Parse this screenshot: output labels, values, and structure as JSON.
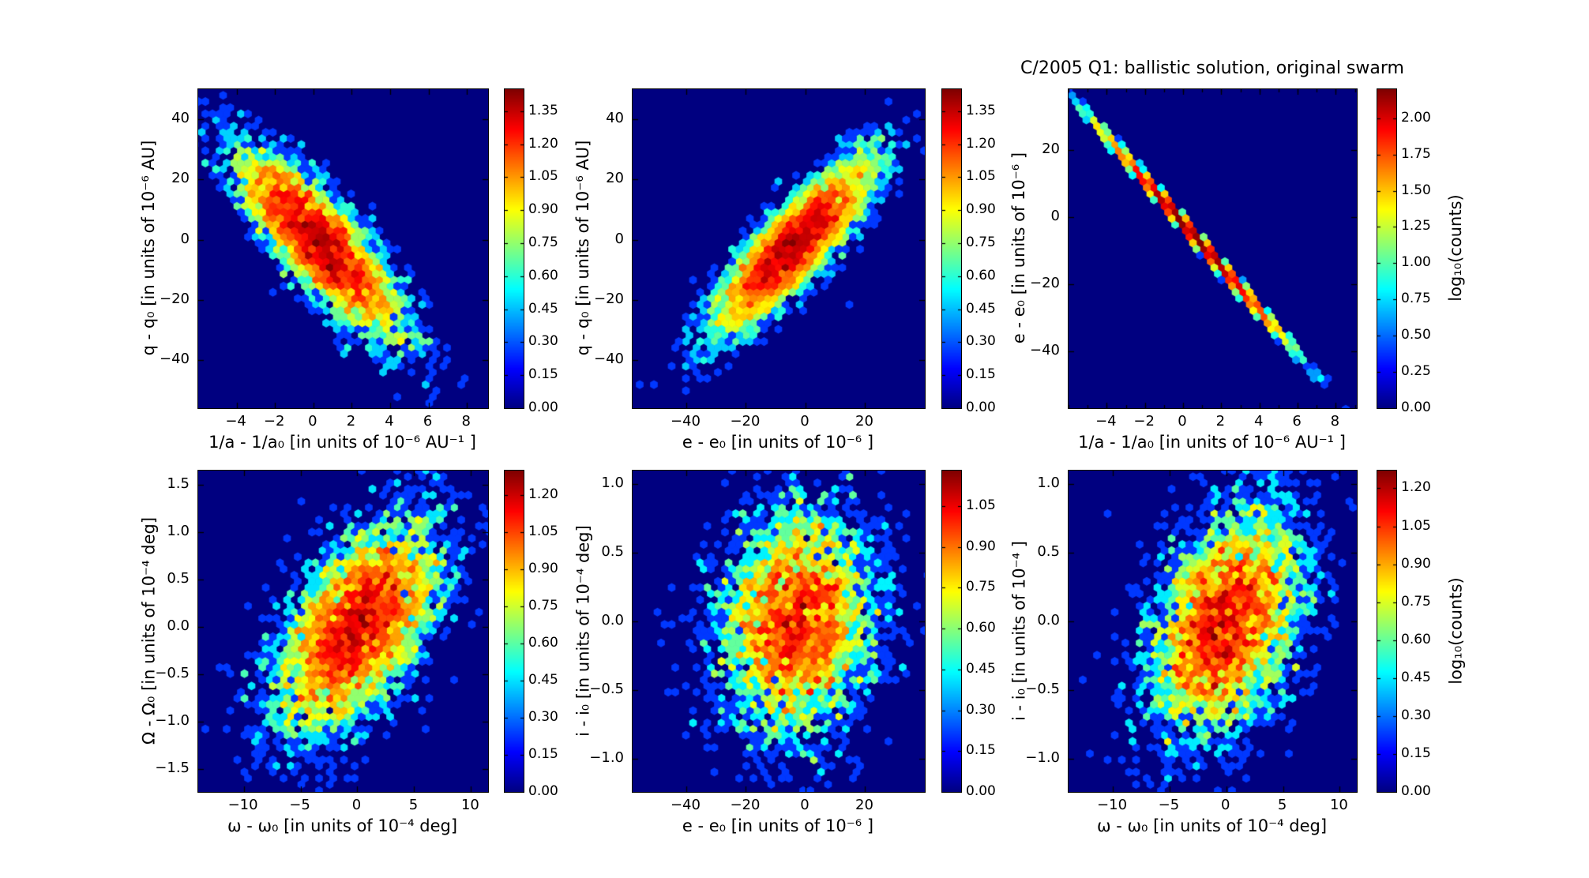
{
  "title": "C/2005 Q1: ballistic solution, original swarm",
  "style": {
    "background": "#ffffff",
    "panel_background": "#000080",
    "colormap": "jet",
    "frame_color": "#000000",
    "text_color": "#000000"
  },
  "chart_data": [
    {
      "id": "dq-vs-dinva",
      "type": "hexbin",
      "xlabel": "1/a - 1/a₀ [in units of 10⁻⁶ AU⁻¹ ]",
      "ylabel": "q - q₀ [in units of 10⁻⁶ AU]",
      "xlim": [
        -6.0,
        9.1
      ],
      "ylim": [
        -56,
        50
      ],
      "xticks": {
        "values": [
          -4,
          -2,
          0,
          2,
          4,
          6,
          8
        ],
        "labels": [
          "−4",
          "−2",
          "0",
          "2",
          "4",
          "6",
          "8"
        ]
      },
      "yticks": {
        "values": [
          40,
          20,
          0,
          -20,
          -40
        ],
        "labels": [
          "40",
          "20",
          "0",
          "−20",
          "−40"
        ]
      },
      "colorbar": {
        "vmax": 1.45,
        "label": "",
        "ticks": {
          "values": [
            1.35,
            1.2,
            1.05,
            0.9,
            0.75,
            0.6,
            0.45,
            0.3,
            0.15,
            0.0
          ],
          "labels": [
            "1.35",
            "1.20",
            "1.05",
            "0.90",
            "0.75",
            "0.60",
            "0.45",
            "0.30",
            "0.15",
            "0.00"
          ]
        }
      },
      "distribution": {
        "shape": "gaussian",
        "mu": [
          0.3,
          -1
        ],
        "sigma": [
          2.1,
          15
        ],
        "rho": -0.82
      },
      "n_points": 5000
    },
    {
      "id": "dq-vs-de",
      "type": "hexbin",
      "xlabel": "e - e₀ [in units of 10⁻⁶ ]",
      "ylabel": "q - q₀ [in units of 10⁻⁶ AU]",
      "xlim": [
        -58,
        40
      ],
      "ylim": [
        -56,
        50
      ],
      "xticks": {
        "values": [
          -40,
          -20,
          0,
          20
        ],
        "labels": [
          "−40",
          "−20",
          "0",
          "20"
        ]
      },
      "yticks": {
        "values": [
          40,
          20,
          0,
          -20,
          -40
        ],
        "labels": [
          "40",
          "20",
          "0",
          "−20",
          "−40"
        ]
      },
      "colorbar": {
        "vmax": 1.45,
        "label": "",
        "ticks": {
          "values": [
            1.35,
            1.2,
            1.05,
            0.9,
            0.75,
            0.6,
            0.45,
            0.3,
            0.15,
            0.0
          ],
          "labels": [
            "1.35",
            "1.20",
            "1.05",
            "0.90",
            "0.75",
            "0.60",
            "0.45",
            "0.30",
            "0.15",
            "0.00"
          ]
        }
      },
      "distribution": {
        "shape": "gaussian",
        "mu": [
          -4,
          -2
        ],
        "sigma": [
          13,
          14
        ],
        "rho": 0.85
      },
      "n_points": 5000
    },
    {
      "id": "de-vs-dinva",
      "type": "hexbin",
      "xlabel": "1/a - 1/a₀ [in units of 10⁻⁶ AU⁻¹ ]",
      "ylabel": "e - e₀ [in units of 10⁻⁶ ]",
      "xlim": [
        -6.0,
        9.1
      ],
      "ylim": [
        -57,
        38
      ],
      "xticks": {
        "values": [
          -4,
          -2,
          0,
          2,
          4,
          6,
          8
        ],
        "labels": [
          "−4",
          "−2",
          "0",
          "2",
          "4",
          "6",
          "8"
        ]
      },
      "yticks": {
        "values": [
          20,
          0,
          -20,
          -40
        ],
        "labels": [
          "20",
          "0",
          "−20",
          "−40"
        ]
      },
      "xtick_minor_step": 1,
      "colorbar": {
        "vmax": 2.2,
        "label": "log₁₀(counts)",
        "ticks": {
          "values": [
            2.0,
            1.75,
            1.5,
            1.25,
            1.0,
            0.75,
            0.5,
            0.25,
            0.0
          ],
          "labels": [
            "2.00",
            "1.75",
            "1.50",
            "1.25",
            "1.00",
            "0.75",
            "0.50",
            "0.25",
            "0.00"
          ]
        }
      },
      "distribution": {
        "shape": "line",
        "mu": [
          0.5,
          0
        ],
        "sigma": [
          2.1,
          0
        ],
        "slope": -6.48,
        "intercept": -2,
        "jitter": 0.7
      },
      "n_points": 8000
    },
    {
      "id": "dOmega-vs-domega",
      "type": "hexbin",
      "xlabel": "ω - ω₀ [in units of 10⁻⁴ deg]",
      "ylabel": "Ω - Ω₀ [in units of 10⁻⁴ deg]",
      "xlim": [
        -14,
        11.5
      ],
      "ylim": [
        -1.74,
        1.65
      ],
      "xticks": {
        "values": [
          -10,
          -5,
          0,
          5,
          10
        ],
        "labels": [
          "−10",
          "−5",
          "0",
          "5",
          "10"
        ]
      },
      "yticks": {
        "values": [
          1.5,
          1.0,
          0.5,
          0.0,
          -0.5,
          -1.0,
          -1.5
        ],
        "labels": [
          "1.5",
          "1.0",
          "0.5",
          "0.0",
          "−0.5",
          "−1.0",
          "−1.5"
        ]
      },
      "colorbar": {
        "vmax": 1.3,
        "label": "",
        "ticks": {
          "values": [
            1.2,
            1.05,
            0.9,
            0.75,
            0.6,
            0.45,
            0.3,
            0.15,
            0.0
          ],
          "labels": [
            "1.20",
            "1.05",
            "0.90",
            "0.75",
            "0.60",
            "0.45",
            "0.30",
            "0.15",
            "0.00"
          ]
        }
      },
      "distribution": {
        "shape": "gaussian",
        "mu": [
          0,
          0
        ],
        "sigma": [
          3.6,
          0.55
        ],
        "rho": 0.55
      },
      "n_points": 5000
    },
    {
      "id": "di-vs-de",
      "type": "hexbin",
      "xlabel": "e - e₀ [in units of 10⁻⁶ ]",
      "ylabel": "i - i₀ [in units of 10⁻⁴ deg]",
      "xlim": [
        -58,
        40
      ],
      "ylim": [
        -1.24,
        1.1
      ],
      "xticks": {
        "values": [
          -40,
          -20,
          0,
          20
        ],
        "labels": [
          "−40",
          "−20",
          "0",
          "20"
        ]
      },
      "yticks": {
        "values": [
          1.0,
          0.5,
          0.0,
          -0.5,
          -1.0
        ],
        "labels": [
          "1.0",
          "0.5",
          "0.0",
          "−0.5",
          "−1.0"
        ]
      },
      "colorbar": {
        "vmax": 1.18,
        "label": "",
        "ticks": {
          "values": [
            1.05,
            0.9,
            0.75,
            0.6,
            0.45,
            0.3,
            0.15,
            0.0
          ],
          "labels": [
            "1.05",
            "0.90",
            "0.75",
            "0.60",
            "0.45",
            "0.30",
            "0.15",
            "0.00"
          ]
        }
      },
      "distribution": {
        "shape": "gaussian",
        "mu": [
          -3,
          0
        ],
        "sigma": [
          13,
          0.42
        ],
        "rho": 0.12
      },
      "n_points": 4000
    },
    {
      "id": "di-vs-domega",
      "type": "hexbin",
      "xlabel": "ω - ω₀ [in units of 10⁻⁴ deg]",
      "ylabel": "i - i₀ [in units of 10⁻⁴ ]",
      "xlim": [
        -13.9,
        11.5
      ],
      "ylim": [
        -1.24,
        1.1
      ],
      "xticks": {
        "values": [
          -10,
          -5,
          0,
          5,
          10
        ],
        "labels": [
          "−10",
          "−5",
          "0",
          "5",
          "10"
        ]
      },
      "yticks": {
        "values": [
          1.0,
          0.5,
          0.0,
          -0.5,
          -1.0
        ],
        "labels": [
          "1.0",
          "0.5",
          "0.0",
          "−0.5",
          "−1.0"
        ]
      },
      "colorbar": {
        "vmax": 1.27,
        "label": "log₁₀(counts)",
        "ticks": {
          "values": [
            1.2,
            1.05,
            0.9,
            0.75,
            0.6,
            0.45,
            0.3,
            0.15,
            0.0
          ],
          "labels": [
            "1.20",
            "1.05",
            "0.90",
            "0.75",
            "0.60",
            "0.45",
            "0.30",
            "0.15",
            "0.00"
          ]
        }
      },
      "distribution": {
        "shape": "gaussian",
        "mu": [
          0,
          0
        ],
        "sigma": [
          3.3,
          0.42
        ],
        "rho": 0.35
      },
      "n_points": 4500
    }
  ]
}
